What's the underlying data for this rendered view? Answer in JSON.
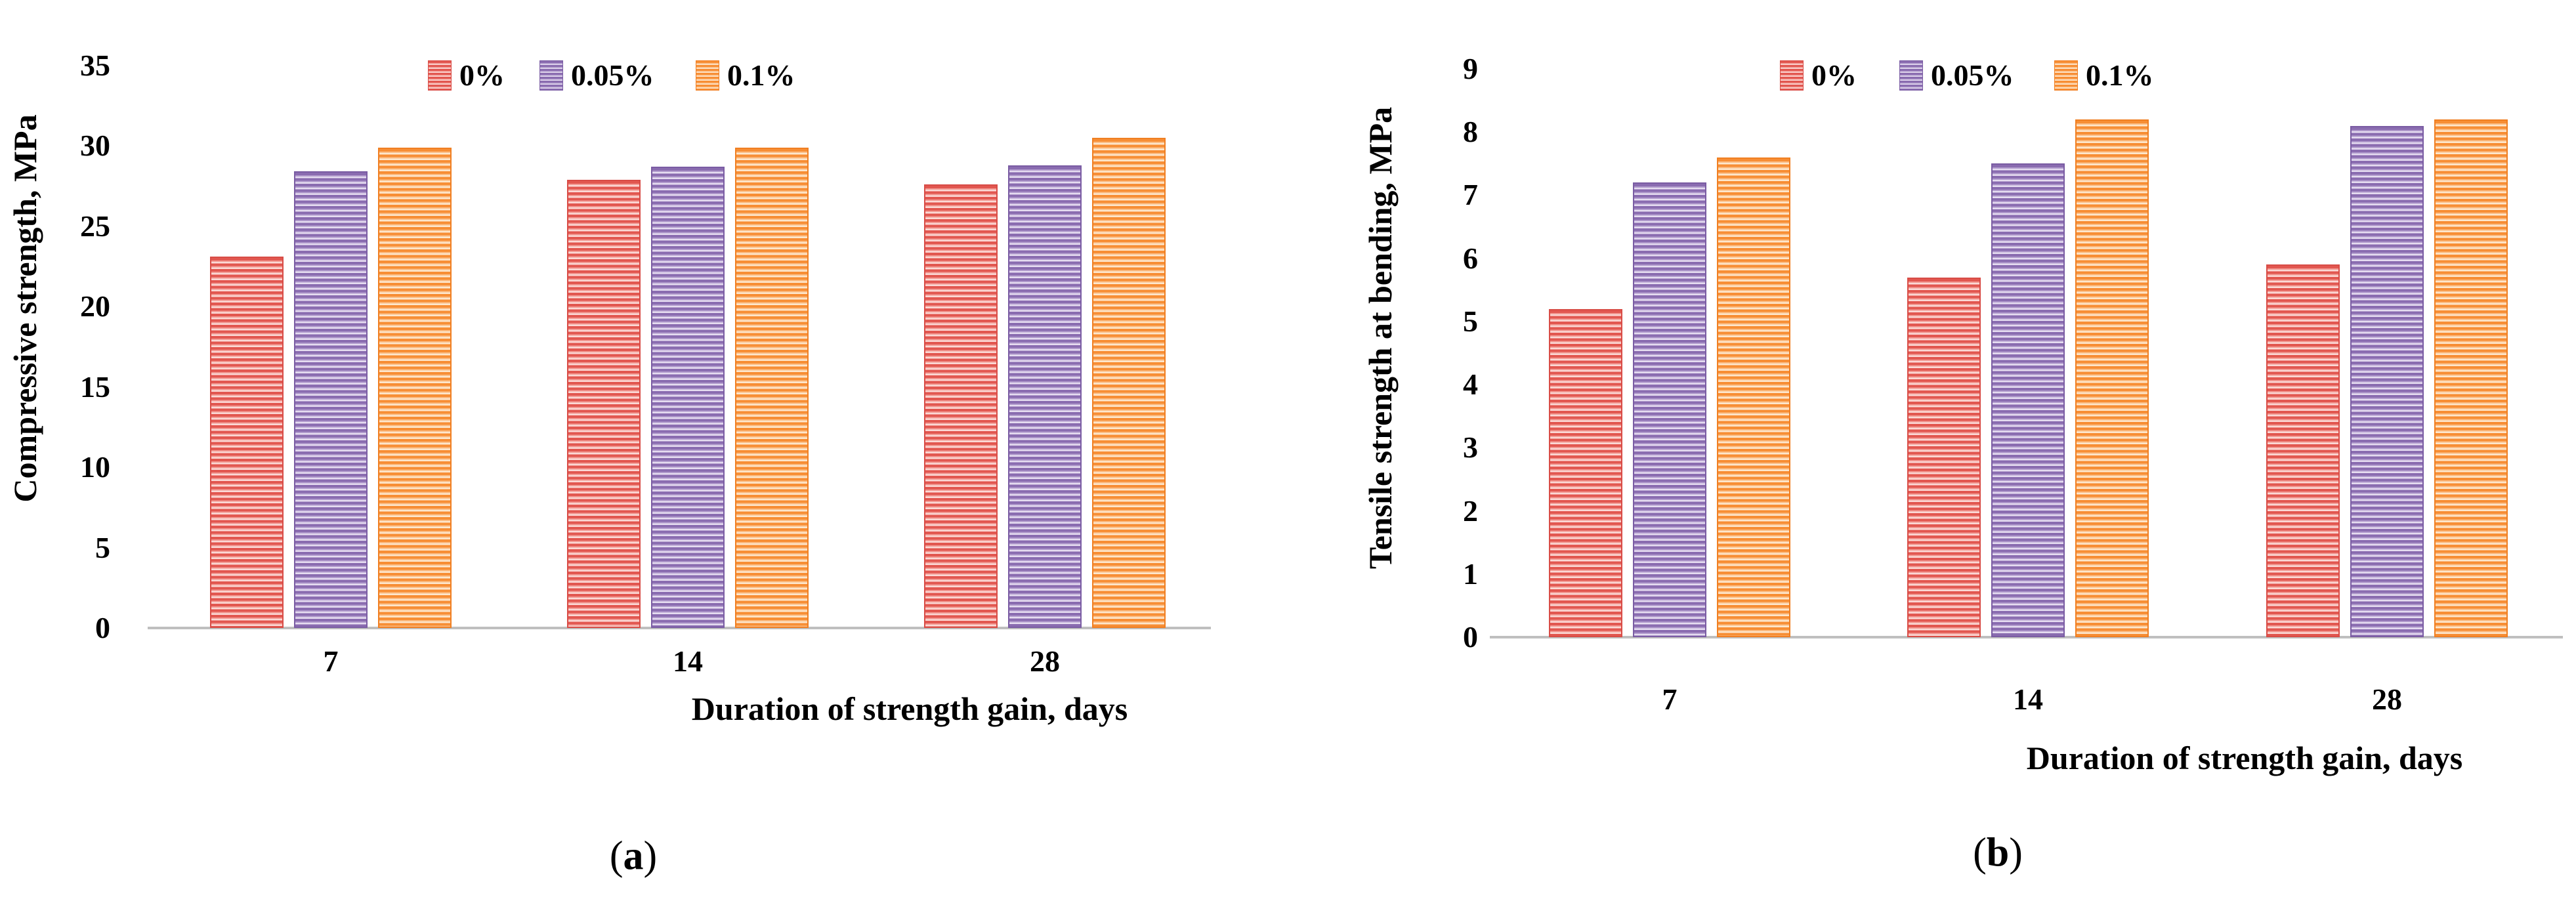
{
  "colors": {
    "red": {
      "base": "#e25750",
      "mid": "#f29a93",
      "light": "#fbd9d6",
      "border": "#d84c46"
    },
    "purple": {
      "base": "#8a6cb0",
      "mid": "#b09acc",
      "light": "#e6ddf1",
      "border": "#7a5ca3"
    },
    "orange": {
      "base": "#f78e35",
      "mid": "#fbbd85",
      "light": "#fde7cd",
      "border": "#f07f22"
    },
    "axis_line": "#bfbfbf",
    "text": "#000000"
  },
  "legend": {
    "items": [
      {
        "label": "0%",
        "series_key": "red"
      },
      {
        "label": "0.05%",
        "series_key": "purple"
      },
      {
        "label": "0.1%",
        "series_key": "orange"
      }
    ]
  },
  "chart_data": [
    {
      "type": "bar",
      "panel": "a",
      "title": "",
      "ylabel": "Compressive strength, MPa",
      "xlabel": "Duration of strength gain, days",
      "categories": [
        "7",
        "14",
        "28"
      ],
      "series": [
        {
          "name": "0%",
          "color_key": "red",
          "values": [
            23.1,
            27.9,
            27.6
          ]
        },
        {
          "name": "0.05%",
          "color_key": "purple",
          "values": [
            28.4,
            28.7,
            28.8
          ]
        },
        {
          "name": "0.1%",
          "color_key": "orange",
          "values": [
            29.9,
            29.9,
            30.5
          ]
        }
      ],
      "ylim": [
        0,
        35
      ],
      "yticks": [
        0,
        5,
        10,
        15,
        20,
        25,
        30,
        35
      ],
      "grid": false,
      "legend_position": "top",
      "caption_open": "(",
      "caption_letter": "a",
      "caption_close": ")"
    },
    {
      "type": "bar",
      "panel": "b",
      "title": "",
      "ylabel": "Tensile strength at bending, MPa",
      "xlabel": "Duration of strength gain, days",
      "categories": [
        "7",
        "14",
        "28"
      ],
      "series": [
        {
          "name": "0%",
          "color_key": "red",
          "values": [
            5.2,
            5.7,
            5.9
          ]
        },
        {
          "name": "0.05%",
          "color_key": "purple",
          "values": [
            7.2,
            7.5,
            8.1
          ]
        },
        {
          "name": "0.1%",
          "color_key": "orange",
          "values": [
            7.6,
            8.2,
            8.2
          ]
        }
      ],
      "ylim": [
        0,
        9
      ],
      "yticks": [
        0,
        1,
        2,
        3,
        4,
        5,
        6,
        7,
        8,
        9
      ],
      "grid": false,
      "legend_position": "top",
      "caption_open": "(",
      "caption_letter": "b",
      "caption_close": ")"
    }
  ]
}
